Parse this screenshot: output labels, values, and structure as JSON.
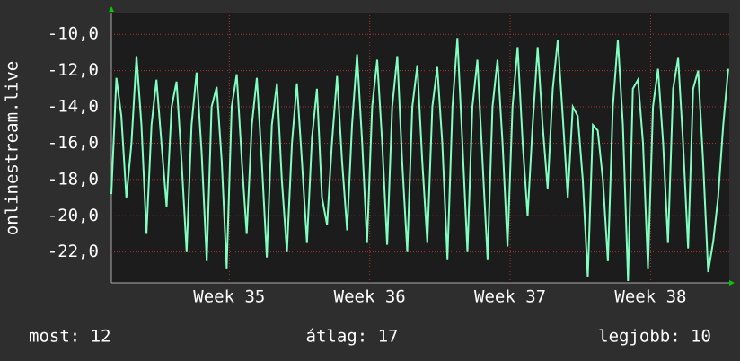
{
  "chart_data": {
    "type": "line",
    "y_label": "onlinestream.live",
    "xlim": [
      34.16,
      38.56
    ],
    "xticks": [
      {
        "value": 35,
        "label": "Week 35"
      },
      {
        "value": 36,
        "label": "Week 36"
      },
      {
        "value": 37,
        "label": "Week 37"
      },
      {
        "value": 38,
        "label": "Week 38"
      }
    ],
    "ylim": [
      -23.7,
      -8.8
    ],
    "yticks": [
      {
        "value": -10,
        "label": "-10,0"
      },
      {
        "value": -12,
        "label": "-12,0"
      },
      {
        "value": -14,
        "label": "-14,0"
      },
      {
        "value": -16,
        "label": "-16,0"
      },
      {
        "value": -18,
        "label": "-18,0"
      },
      {
        "value": -20,
        "label": "-20,0"
      },
      {
        "value": -22,
        "label": "-22,0"
      }
    ],
    "grid": true,
    "x": [
      34.16,
      34.196,
      34.231,
      34.267,
      34.303,
      34.339,
      34.374,
      34.41,
      34.446,
      34.481,
      34.517,
      34.553,
      34.589,
      34.624,
      34.66,
      34.696,
      34.731,
      34.767,
      34.803,
      34.839,
      34.874,
      34.91,
      34.946,
      34.981,
      35.017,
      35.053,
      35.089,
      35.124,
      35.16,
      35.196,
      35.231,
      35.267,
      35.303,
      35.339,
      35.374,
      35.41,
      35.446,
      35.481,
      35.517,
      35.553,
      35.589,
      35.624,
      35.66,
      35.696,
      35.731,
      35.767,
      35.803,
      35.839,
      35.874,
      35.91,
      35.946,
      35.981,
      36.017,
      36.053,
      36.089,
      36.124,
      36.16,
      36.196,
      36.231,
      36.267,
      36.303,
      36.339,
      36.374,
      36.41,
      36.446,
      36.481,
      36.517,
      36.553,
      36.589,
      36.624,
      36.66,
      36.696,
      36.731,
      36.767,
      36.803,
      36.839,
      36.874,
      36.91,
      36.946,
      36.981,
      37.017,
      37.053,
      37.089,
      37.124,
      37.16,
      37.196,
      37.231,
      37.267,
      37.303,
      37.339,
      37.374,
      37.41,
      37.446,
      37.481,
      37.517,
      37.553,
      37.589,
      37.624,
      37.66,
      37.696,
      37.731,
      37.767,
      37.803,
      37.839,
      37.874,
      37.91,
      37.946,
      37.981,
      38.017,
      38.053,
      38.089,
      38.124,
      38.16,
      38.196,
      38.231,
      38.267,
      38.303,
      38.339,
      38.374,
      38.41,
      38.446,
      38.481,
      38.517,
      38.553
    ],
    "series": [
      {
        "color": "#80ffc0",
        "values": [
          -18.8,
          -12.4,
          -14.5,
          -19,
          -16,
          -11.2,
          -15,
          -21,
          -15,
          -12.5,
          -16,
          -19.5,
          -14,
          -12.6,
          -17,
          -22,
          -15,
          -12.1,
          -16.5,
          -22.5,
          -14,
          -12.9,
          -17,
          -22.9,
          -14,
          -12.2,
          -17,
          -21,
          -15,
          -12.4,
          -17,
          -22.3,
          -15,
          -12.7,
          -18,
          -22,
          -16,
          -12.7,
          -17,
          -21.5,
          -15.7,
          -13,
          -19,
          -20.5,
          -16,
          -12.3,
          -17,
          -20.8,
          -15,
          -11.1,
          -16,
          -21.5,
          -14,
          -11.4,
          -16,
          -21.6,
          -14,
          -11.2,
          -17,
          -22,
          -14,
          -11.7,
          -17,
          -21.5,
          -14,
          -11.8,
          -16,
          -22.4,
          -14,
          -10.2,
          -16,
          -22,
          -14,
          -11.4,
          -17,
          -22.4,
          -14,
          -11.4,
          -16,
          -21.7,
          -14,
          -10.7,
          -16,
          -20,
          -15,
          -10.7,
          -15,
          -18.5,
          -13,
          -10.3,
          -14.5,
          -19,
          -14,
          -14.5,
          -18,
          -23.4,
          -15,
          -15.3,
          -18,
          -22.5,
          -14,
          -10.3,
          -15,
          -23.6,
          -13,
          -12.5,
          -16,
          -22.9,
          -14,
          -11.9,
          -16,
          -21.5,
          -13,
          -11.3,
          -16,
          -21.8,
          -13,
          -12,
          -17,
          -23.1,
          -21.4,
          -19,
          -15,
          -11.9
        ]
      }
    ],
    "footer": [
      "most: 12",
      "átlag: 17",
      "legjobb: 10"
    ]
  }
}
